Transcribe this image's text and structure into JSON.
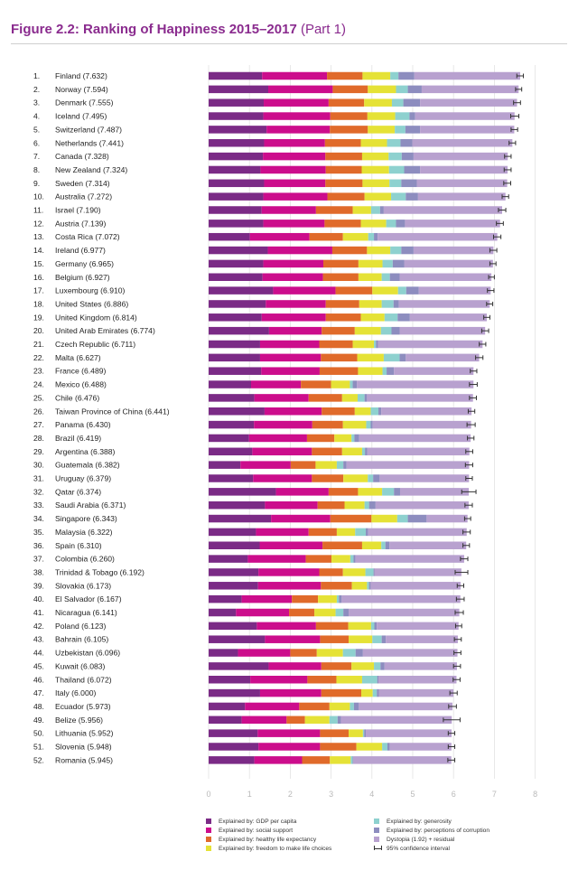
{
  "figure": {
    "title": "Figure 2.2: Ranking of Happiness 2015–2017",
    "subtitle": "(Part 1)"
  },
  "colors": {
    "gdp": "#7b2b86",
    "social": "#cc0d8c",
    "health": "#e06a2a",
    "freedom": "#e5e236",
    "generosity": "#8ed1cf",
    "corruption": "#8d8dbf",
    "dystopia": "#b8a1cf",
    "ci": "#333333"
  },
  "chart_data": {
    "type": "bar",
    "orientation": "horizontal",
    "stacked": true,
    "xlim": [
      0,
      8
    ],
    "xticks": [
      "0",
      "1",
      "2",
      "3",
      "4",
      "5",
      "6",
      "7",
      "8"
    ],
    "grid": true,
    "legend_position": "bottom",
    "series": [
      {
        "name": "Explained by: GDP per capita",
        "key": "gdp"
      },
      {
        "name": "Explained by: social support",
        "key": "social"
      },
      {
        "name": "Explained by: healthy life expectancy",
        "key": "health"
      },
      {
        "name": "Explained by: freedom to make life choices",
        "key": "freedom"
      },
      {
        "name": "Explained by: generosity",
        "key": "generosity"
      },
      {
        "name": "Explained by: perceptions of corruption",
        "key": "corruption"
      },
      {
        "name": "Dystopia (1.92) + residual",
        "key": "dystopia"
      }
    ],
    "ci_label": "95% confidence interval",
    "rows": [
      {
        "rank": "1.",
        "label": "Finland (7.632)",
        "value": 7.632,
        "parts": [
          1.31,
          1.59,
          0.87,
          0.68,
          0.2,
          0.39
        ],
        "ci": [
          7.55,
          7.71
        ]
      },
      {
        "rank": "2.",
        "label": "Norway (7.594)",
        "value": 7.594,
        "parts": [
          1.46,
          1.58,
          0.86,
          0.69,
          0.29,
          0.34
        ],
        "ci": [
          7.52,
          7.67
        ]
      },
      {
        "rank": "3.",
        "label": "Denmark (7.555)",
        "value": 7.555,
        "parts": [
          1.35,
          1.59,
          0.87,
          0.68,
          0.28,
          0.41
        ],
        "ci": [
          7.47,
          7.64
        ]
      },
      {
        "rank": "4.",
        "label": "Iceland (7.495)",
        "value": 7.495,
        "parts": [
          1.34,
          1.64,
          0.91,
          0.68,
          0.35,
          0.14
        ],
        "ci": [
          7.4,
          7.6
        ]
      },
      {
        "rank": "5.",
        "label": "Switzerland (7.487)",
        "value": 7.487,
        "parts": [
          1.42,
          1.55,
          0.93,
          0.66,
          0.26,
          0.36
        ],
        "ci": [
          7.41,
          7.57
        ]
      },
      {
        "rank": "6.",
        "label": "Netherlands (7.441)",
        "value": 7.441,
        "parts": [
          1.36,
          1.49,
          0.88,
          0.64,
          0.33,
          0.29
        ],
        "ci": [
          7.36,
          7.52
        ]
      },
      {
        "rank": "7.",
        "label": "Canada (7.328)",
        "value": 7.328,
        "parts": [
          1.33,
          1.53,
          0.9,
          0.65,
          0.32,
          0.29
        ],
        "ci": [
          7.25,
          7.41
        ]
      },
      {
        "rank": "8.",
        "label": "New Zealand (7.324)",
        "value": 7.324,
        "parts": [
          1.27,
          1.6,
          0.88,
          0.67,
          0.37,
          0.39
        ],
        "ci": [
          7.24,
          7.41
        ]
      },
      {
        "rank": "9.",
        "label": "Sweden (7.314)",
        "value": 7.314,
        "parts": [
          1.36,
          1.5,
          0.91,
          0.66,
          0.29,
          0.38
        ],
        "ci": [
          7.23,
          7.4
        ]
      },
      {
        "rank": "10.",
        "label": "Australia (7.272)",
        "value": 7.272,
        "parts": [
          1.34,
          1.57,
          0.91,
          0.65,
          0.36,
          0.3
        ],
        "ci": [
          7.19,
          7.35
        ]
      },
      {
        "rank": "11.",
        "label": "Israel (7.190)",
        "value": 7.19,
        "parts": [
          1.3,
          1.33,
          0.9,
          0.45,
          0.22,
          0.09
        ],
        "ci": [
          7.1,
          7.28
        ]
      },
      {
        "rank": "12.",
        "label": "Austria (7.139)",
        "value": 7.139,
        "parts": [
          1.34,
          1.5,
          0.89,
          0.62,
          0.24,
          0.22
        ],
        "ci": [
          7.05,
          7.22
        ]
      },
      {
        "rank": "13.",
        "label": "Costa Rica (7.072)",
        "value": 7.072,
        "parts": [
          1.01,
          1.46,
          0.82,
          0.62,
          0.14,
          0.09
        ],
        "ci": [
          6.98,
          7.16
        ]
      },
      {
        "rank": "14.",
        "label": "Ireland (6.977)",
        "value": 6.977,
        "parts": [
          1.45,
          1.58,
          0.85,
          0.57,
          0.27,
          0.3
        ],
        "ci": [
          6.89,
          7.06
        ]
      },
      {
        "rank": "15.",
        "label": "Germany (6.965)",
        "value": 6.965,
        "parts": [
          1.34,
          1.47,
          0.86,
          0.59,
          0.25,
          0.28
        ],
        "ci": [
          6.89,
          7.04
        ]
      },
      {
        "rank": "16.",
        "label": "Belgium (6.927)",
        "value": 6.927,
        "parts": [
          1.32,
          1.48,
          0.87,
          0.57,
          0.2,
          0.24
        ],
        "ci": [
          6.86,
          7.0
        ]
      },
      {
        "rank": "17.",
        "label": "Luxembourg (6.910)",
        "value": 6.91,
        "parts": [
          1.58,
          1.53,
          0.9,
          0.63,
          0.2,
          0.31
        ],
        "ci": [
          6.83,
          6.99
        ]
      },
      {
        "rank": "18.",
        "label": "United States (6.886)",
        "value": 6.886,
        "parts": [
          1.4,
          1.47,
          0.82,
          0.55,
          0.29,
          0.13
        ],
        "ci": [
          6.81,
          6.96
        ]
      },
      {
        "rank": "19.",
        "label": "United Kingdom (6.814)",
        "value": 6.814,
        "parts": [
          1.3,
          1.57,
          0.86,
          0.58,
          0.32,
          0.3
        ],
        "ci": [
          6.74,
          6.89
        ]
      },
      {
        "rank": "20.",
        "label": "United Arab Emirates (6.774)",
        "value": 6.774,
        "parts": [
          1.48,
          1.29,
          0.81,
          0.64,
          0.26,
          0.2
        ],
        "ci": [
          6.69,
          6.86
        ]
      },
      {
        "rank": "21.",
        "label": "Czech Republic (6.711)",
        "value": 6.711,
        "parts": [
          1.26,
          1.45,
          0.82,
          0.52,
          0.05,
          0.05
        ],
        "ci": [
          6.63,
          6.79
        ]
      },
      {
        "rank": "22.",
        "label": "Malta (6.627)",
        "value": 6.627,
        "parts": [
          1.26,
          1.49,
          0.89,
          0.65,
          0.39,
          0.15
        ],
        "ci": [
          6.54,
          6.72
        ]
      },
      {
        "rank": "23.",
        "label": "France (6.489)",
        "value": 6.489,
        "parts": [
          1.29,
          1.43,
          0.94,
          0.6,
          0.1,
          0.18
        ],
        "ci": [
          6.41,
          6.57
        ]
      },
      {
        "rank": "24.",
        "label": "Mexico (6.488)",
        "value": 6.488,
        "parts": [
          1.04,
          1.22,
          0.74,
          0.46,
          0.07,
          0.1
        ],
        "ci": [
          6.39,
          6.58
        ]
      },
      {
        "rank": "25.",
        "label": "Chile (6.476)",
        "value": 6.476,
        "parts": [
          1.12,
          1.33,
          0.82,
          0.38,
          0.17,
          0.06
        ],
        "ci": [
          6.39,
          6.56
        ]
      },
      {
        "rank": "26.",
        "label": "Taiwan Province of China (6.441)",
        "value": 6.441,
        "parts": [
          1.37,
          1.4,
          0.81,
          0.39,
          0.19,
          0.07
        ],
        "ci": [
          6.36,
          6.52
        ]
      },
      {
        "rank": "27.",
        "label": "Panama (6.430)",
        "value": 6.43,
        "parts": [
          1.11,
          1.43,
          0.75,
          0.57,
          0.11,
          0.05
        ],
        "ci": [
          6.33,
          6.53
        ]
      },
      {
        "rank": "28.",
        "label": "Brazil (6.419)",
        "value": 6.419,
        "parts": [
          0.99,
          1.42,
          0.67,
          0.42,
          0.07,
          0.12
        ],
        "ci": [
          6.34,
          6.5
        ]
      },
      {
        "rank": "29.",
        "label": "Argentina (6.388)",
        "value": 6.388,
        "parts": [
          1.07,
          1.46,
          0.74,
          0.49,
          0.07,
          0.06
        ],
        "ci": [
          6.3,
          6.47
        ]
      },
      {
        "rank": "30.",
        "label": "Guatemala (6.382)",
        "value": 6.382,
        "parts": [
          0.78,
          1.23,
          0.61,
          0.52,
          0.16,
          0.08
        ],
        "ci": [
          6.29,
          6.47
        ]
      },
      {
        "rank": "31.",
        "label": "Uruguay (6.379)",
        "value": 6.379,
        "parts": [
          1.09,
          1.44,
          0.77,
          0.6,
          0.13,
          0.16
        ],
        "ci": [
          6.3,
          6.46
        ]
      },
      {
        "rank": "32.",
        "label": "Qatar (6.374)",
        "value": 6.374,
        "parts": [
          1.65,
          1.29,
          0.72,
          0.59,
          0.29,
          0.15
        ],
        "ci": [
          6.2,
          6.55
        ]
      },
      {
        "rank": "33.",
        "label": "Saudi Arabia (6.371)",
        "value": 6.371,
        "parts": [
          1.38,
          1.29,
          0.66,
          0.49,
          0.11,
          0.16
        ],
        "ci": [
          6.28,
          6.46
        ]
      },
      {
        "rank": "34.",
        "label": "Singapore (6.343)",
        "value": 6.343,
        "parts": [
          1.53,
          1.45,
          1.01,
          0.63,
          0.26,
          0.46
        ],
        "ci": [
          6.27,
          6.42
        ]
      },
      {
        "rank": "35.",
        "label": "Malaysia (6.322)",
        "value": 6.322,
        "parts": [
          1.16,
          1.29,
          0.69,
          0.45,
          0.26,
          0.06
        ],
        "ci": [
          6.23,
          6.41
        ]
      },
      {
        "rank": "36.",
        "label": "Spain (6.310)",
        "value": 6.31,
        "parts": [
          1.25,
          1.54,
          0.97,
          0.47,
          0.1,
          0.1
        ],
        "ci": [
          6.23,
          6.39
        ]
      },
      {
        "rank": "37.",
        "label": "Colombia (6.260)",
        "value": 6.26,
        "parts": [
          0.96,
          1.42,
          0.63,
          0.46,
          0.08,
          0.05
        ],
        "ci": [
          6.17,
          6.35
        ]
      },
      {
        "rank": "38.",
        "label": "Trinidad & Tobago (6.192)",
        "value": 6.192,
        "parts": [
          1.22,
          1.49,
          0.58,
          0.55,
          0.2,
          0.02
        ],
        "ci": [
          6.04,
          6.35
        ]
      },
      {
        "rank": "39.",
        "label": "Slovakia (6.173)",
        "value": 6.173,
        "parts": [
          1.21,
          1.54,
          0.76,
          0.37,
          0.05,
          0.04
        ],
        "ci": [
          6.09,
          6.25
        ]
      },
      {
        "rank": "40.",
        "label": "El Salvador (6.167)",
        "value": 6.167,
        "parts": [
          0.81,
          1.23,
          0.64,
          0.46,
          0.05,
          0.07
        ],
        "ci": [
          6.07,
          6.26
        ]
      },
      {
        "rank": "41.",
        "label": "Nicaragua (6.141)",
        "value": 6.141,
        "parts": [
          0.67,
          1.3,
          0.62,
          0.52,
          0.19,
          0.13
        ],
        "ci": [
          6.04,
          6.24
        ]
      },
      {
        "rank": "42.",
        "label": "Poland (6.123)",
        "value": 6.123,
        "parts": [
          1.18,
          1.45,
          0.79,
          0.56,
          0.08,
          0.06
        ],
        "ci": [
          6.05,
          6.2
        ]
      },
      {
        "rank": "43.",
        "label": "Bahrain (6.105)",
        "value": 6.105,
        "parts": [
          1.38,
          1.35,
          0.7,
          0.58,
          0.23,
          0.1
        ],
        "ci": [
          6.02,
          6.19
        ]
      },
      {
        "rank": "44.",
        "label": "Uzbekistan (6.096)",
        "value": 6.096,
        "parts": [
          0.72,
          1.28,
          0.65,
          0.64,
          0.31,
          0.18
        ],
        "ci": [
          6.01,
          6.18
        ]
      },
      {
        "rank": "45.",
        "label": "Kuwait (6.083)",
        "value": 6.083,
        "parts": [
          1.47,
          1.29,
          0.74,
          0.55,
          0.16,
          0.1
        ],
        "ci": [
          6.0,
          6.17
        ]
      },
      {
        "rank": "46.",
        "label": "Thailand (6.072)",
        "value": 6.072,
        "parts": [
          1.02,
          1.4,
          0.71,
          0.63,
          0.37,
          0.03
        ],
        "ci": [
          5.99,
          6.16
        ]
      },
      {
        "rank": "47.",
        "label": "Italy (6.000)",
        "value": 6.0,
        "parts": [
          1.26,
          1.5,
          0.98,
          0.28,
          0.1,
          0.05
        ],
        "ci": [
          5.91,
          6.09
        ]
      },
      {
        "rank": "48.",
        "label": "Ecuador (5.973)",
        "value": 5.973,
        "parts": [
          0.89,
          1.33,
          0.74,
          0.5,
          0.1,
          0.12
        ],
        "ci": [
          5.88,
          6.07
        ]
      },
      {
        "rank": "49.",
        "label": "Belize (5.956)",
        "value": 5.956,
        "parts": [
          0.81,
          1.1,
          0.45,
          0.6,
          0.2,
          0.08
        ],
        "ci": [
          5.75,
          6.16
        ]
      },
      {
        "rank": "50.",
        "label": "Lithuania (5.952)",
        "value": 5.952,
        "parts": [
          1.2,
          1.53,
          0.7,
          0.35,
          0.03,
          0.04
        ],
        "ci": [
          5.87,
          6.03
        ]
      },
      {
        "rank": "51.",
        "label": "Slovenia (5.948)",
        "value": 5.948,
        "parts": [
          1.22,
          1.51,
          0.89,
          0.63,
          0.13,
          0.06
        ],
        "ci": [
          5.87,
          6.03
        ]
      },
      {
        "rank": "52.",
        "label": "Romania (5.945)",
        "value": 5.945,
        "parts": [
          1.12,
          1.17,
          0.68,
          0.51,
          0.05,
          0.01
        ],
        "ci": [
          5.86,
          6.03
        ]
      }
    ]
  }
}
